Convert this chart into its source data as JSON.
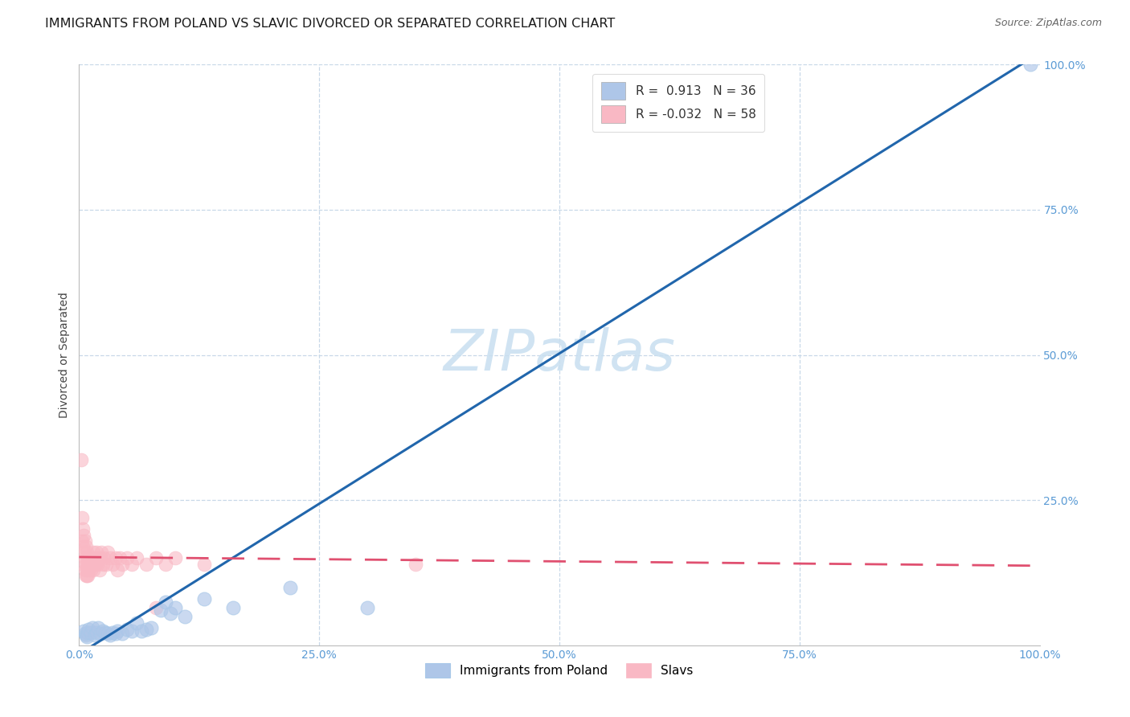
{
  "title": "IMMIGRANTS FROM POLAND VS SLAVIC DIVORCED OR SEPARATED CORRELATION CHART",
  "source": "Source: ZipAtlas.com",
  "ylabel": "Divorced or Separated",
  "xlim": [
    0.0,
    1.0
  ],
  "ylim": [
    0.0,
    1.0
  ],
  "xticks": [
    0.0,
    0.25,
    0.5,
    0.75,
    1.0
  ],
  "yticks": [
    0.25,
    0.5,
    0.75,
    1.0
  ],
  "xticklabels": [
    "0.0%",
    "25.0%",
    "50.0%",
    "75.0%",
    "100.0%"
  ],
  "yticklabels_right": [
    "25.0%",
    "50.0%",
    "75.0%",
    "100.0%"
  ],
  "watermark": "ZIPatlas",
  "legend_r_blue": "R =  0.913",
  "legend_n_blue": "N = 36",
  "legend_r_pink": "R = -0.032",
  "legend_n_pink": "N = 58",
  "blue_color": "#a8c8e8",
  "pink_color": "#f4a0b0",
  "blue_fill_color": "#aec6e8",
  "pink_fill_color": "#f9b8c4",
  "blue_line_color": "#2166ac",
  "pink_line_color": "#e05070",
  "tick_color": "#5b9bd5",
  "blue_scatter": [
    [
      0.005,
      0.025
    ],
    [
      0.006,
      0.02
    ],
    [
      0.007,
      0.018
    ],
    [
      0.008,
      0.015
    ],
    [
      0.009,
      0.022
    ],
    [
      0.01,
      0.028
    ],
    [
      0.012,
      0.022
    ],
    [
      0.014,
      0.03
    ],
    [
      0.016,
      0.018
    ],
    [
      0.018,
      0.022
    ],
    [
      0.02,
      0.03
    ],
    [
      0.022,
      0.02
    ],
    [
      0.025,
      0.025
    ],
    [
      0.027,
      0.022
    ],
    [
      0.03,
      0.02
    ],
    [
      0.032,
      0.018
    ],
    [
      0.035,
      0.022
    ],
    [
      0.038,
      0.02
    ],
    [
      0.04,
      0.025
    ],
    [
      0.045,
      0.02
    ],
    [
      0.05,
      0.028
    ],
    [
      0.055,
      0.025
    ],
    [
      0.06,
      0.038
    ],
    [
      0.065,
      0.025
    ],
    [
      0.07,
      0.028
    ],
    [
      0.075,
      0.03
    ],
    [
      0.085,
      0.06
    ],
    [
      0.09,
      0.075
    ],
    [
      0.095,
      0.055
    ],
    [
      0.1,
      0.065
    ],
    [
      0.11,
      0.05
    ],
    [
      0.13,
      0.08
    ],
    [
      0.16,
      0.065
    ],
    [
      0.22,
      0.1
    ],
    [
      0.3,
      0.065
    ],
    [
      0.99,
      1.0
    ]
  ],
  "pink_scatter": [
    [
      0.002,
      0.32
    ],
    [
      0.003,
      0.18
    ],
    [
      0.003,
      0.22
    ],
    [
      0.004,
      0.17
    ],
    [
      0.004,
      0.2
    ],
    [
      0.005,
      0.19
    ],
    [
      0.005,
      0.16
    ],
    [
      0.005,
      0.14
    ],
    [
      0.006,
      0.18
    ],
    [
      0.006,
      0.15
    ],
    [
      0.006,
      0.13
    ],
    [
      0.007,
      0.17
    ],
    [
      0.007,
      0.14
    ],
    [
      0.007,
      0.12
    ],
    [
      0.008,
      0.16
    ],
    [
      0.008,
      0.13
    ],
    [
      0.008,
      0.12
    ],
    [
      0.009,
      0.15
    ],
    [
      0.009,
      0.14
    ],
    [
      0.009,
      0.12
    ],
    [
      0.01,
      0.15
    ],
    [
      0.01,
      0.14
    ],
    [
      0.01,
      0.13
    ],
    [
      0.011,
      0.15
    ],
    [
      0.012,
      0.14
    ],
    [
      0.012,
      0.13
    ],
    [
      0.013,
      0.15
    ],
    [
      0.014,
      0.14
    ],
    [
      0.015,
      0.16
    ],
    [
      0.015,
      0.13
    ],
    [
      0.016,
      0.15
    ],
    [
      0.017,
      0.14
    ],
    [
      0.018,
      0.16
    ],
    [
      0.019,
      0.14
    ],
    [
      0.02,
      0.15
    ],
    [
      0.021,
      0.13
    ],
    [
      0.022,
      0.15
    ],
    [
      0.023,
      0.16
    ],
    [
      0.025,
      0.14
    ],
    [
      0.026,
      0.15
    ],
    [
      0.028,
      0.14
    ],
    [
      0.03,
      0.16
    ],
    [
      0.032,
      0.15
    ],
    [
      0.035,
      0.14
    ],
    [
      0.038,
      0.15
    ],
    [
      0.04,
      0.13
    ],
    [
      0.042,
      0.15
    ],
    [
      0.045,
      0.14
    ],
    [
      0.05,
      0.15
    ],
    [
      0.055,
      0.14
    ],
    [
      0.06,
      0.15
    ],
    [
      0.07,
      0.14
    ],
    [
      0.08,
      0.15
    ],
    [
      0.09,
      0.14
    ],
    [
      0.1,
      0.15
    ],
    [
      0.13,
      0.14
    ],
    [
      0.35,
      0.14
    ],
    [
      0.08,
      0.065
    ]
  ],
  "blue_line_x": [
    0.0,
    1.0
  ],
  "blue_line_y": [
    -0.015,
    1.02
  ],
  "pink_line_x": [
    0.0,
    1.0
  ],
  "pink_line_y": [
    0.152,
    0.137
  ],
  "pink_line_dashes": [
    10,
    6
  ],
  "grid_color": "#c8d8e8",
  "bg_color": "#ffffff",
  "title_fontsize": 11.5,
  "source_fontsize": 9,
  "axis_tick_fontsize": 10,
  "watermark_fontsize": 52,
  "watermark_color": "#c8dff0",
  "watermark_alpha": 0.85,
  "legend_patch_blue": "#aec6e8",
  "legend_patch_pink": "#f9b8c4"
}
